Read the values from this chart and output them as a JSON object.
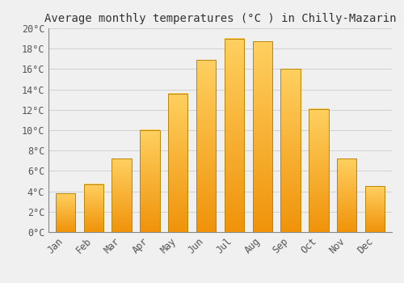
{
  "title": "Average monthly temperatures (°C ) in Chilly-Mazarin",
  "months": [
    "Jan",
    "Feb",
    "Mar",
    "Apr",
    "May",
    "Jun",
    "Jul",
    "Aug",
    "Sep",
    "Oct",
    "Nov",
    "Dec"
  ],
  "values": [
    3.8,
    4.7,
    7.2,
    10.0,
    13.6,
    16.9,
    19.0,
    18.7,
    16.0,
    12.1,
    7.2,
    4.5
  ],
  "bar_color": "#FFAA00",
  "bar_edge_color": "#B8860B",
  "background_color": "#F0F0F0",
  "grid_color": "#CCCCCC",
  "ylim": [
    0,
    20
  ],
  "yticks": [
    0,
    2,
    4,
    6,
    8,
    10,
    12,
    14,
    16,
    18,
    20
  ],
  "ytick_labels": [
    "0°C",
    "2°C",
    "4°C",
    "6°C",
    "8°C",
    "10°C",
    "12°C",
    "14°C",
    "16°C",
    "18°C",
    "20°C"
  ],
  "title_fontsize": 10,
  "tick_fontsize": 8.5,
  "font_family": "monospace",
  "bar_width": 0.7
}
